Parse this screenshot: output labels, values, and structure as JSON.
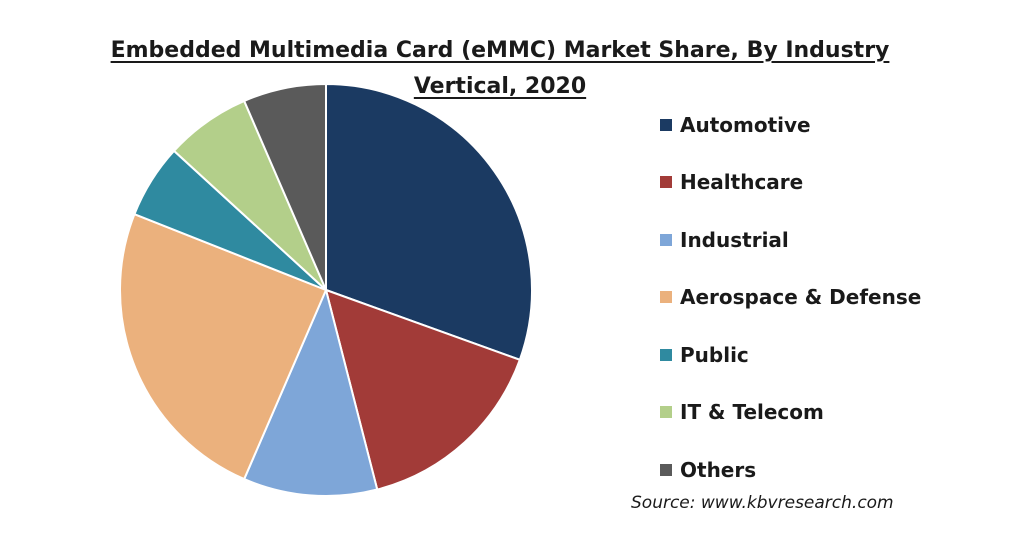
{
  "chart_data": {
    "type": "pie",
    "title": "Embedded Multimedia Card (eMMC) Market Share, By Industry Vertical, 2020",
    "categories": [
      "Automotive",
      "Healthcare",
      "Industrial",
      "Aerospace & Defense",
      "Public",
      "IT & Telecom",
      "Others"
    ],
    "values": [
      30.5,
      15.5,
      10.5,
      24.5,
      5.8,
      6.7,
      6.5
    ],
    "colors": [
      "#1b3a62",
      "#a23b38",
      "#7ea6d8",
      "#ebb17d",
      "#2f8aa0",
      "#b3cf8a",
      "#5a5a5a"
    ],
    "start_angle_deg": 0,
    "direction": "clockwise",
    "legend_position": "right"
  },
  "source": "Source: www.kbvresearch.com"
}
